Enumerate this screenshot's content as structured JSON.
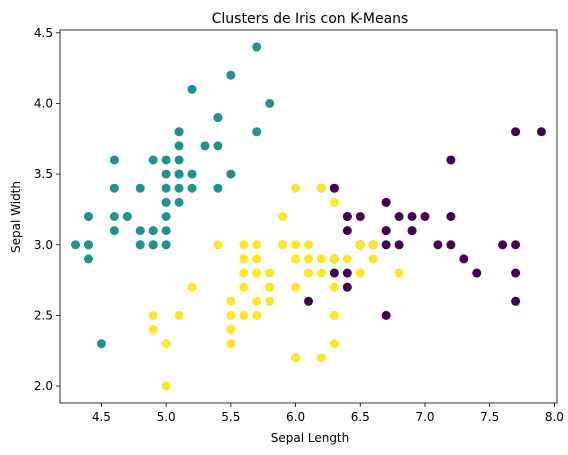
{
  "chart_data": {
    "type": "scatter",
    "title": "Clusters de Iris con K-Means",
    "xlabel": "Sepal Length",
    "ylabel": "Sepal Width",
    "xlim": [
      4.18,
      8.02
    ],
    "ylim": [
      1.88,
      4.52
    ],
    "xticks": [
      "4.5",
      "5.0",
      "5.5",
      "6.0",
      "6.5",
      "7.0",
      "7.5",
      "8.0"
    ],
    "yticks": [
      "2.0",
      "2.5",
      "3.0",
      "3.5",
      "4.0",
      "4.5"
    ],
    "grid": false,
    "legend": "none",
    "series": [
      {
        "color": "#21918c",
        "points": [
          [
            5.1,
            3.5
          ],
          [
            4.9,
            3.0
          ],
          [
            4.7,
            3.2
          ],
          [
            4.6,
            3.1
          ],
          [
            5.0,
            3.6
          ],
          [
            5.4,
            3.9
          ],
          [
            4.6,
            3.4
          ],
          [
            5.0,
            3.4
          ],
          [
            4.4,
            2.9
          ],
          [
            4.9,
            3.1
          ],
          [
            5.4,
            3.7
          ],
          [
            4.8,
            3.4
          ],
          [
            4.8,
            3.0
          ],
          [
            4.3,
            3.0
          ],
          [
            5.8,
            4.0
          ],
          [
            5.7,
            4.4
          ],
          [
            5.1,
            3.8
          ],
          [
            5.7,
            3.8
          ],
          [
            5.1,
            3.7
          ],
          [
            4.6,
            3.6
          ],
          [
            5.1,
            3.3
          ],
          [
            5.0,
            3.0
          ],
          [
            5.2,
            3.5
          ],
          [
            5.2,
            3.4
          ],
          [
            4.7,
            3.2
          ],
          [
            5.4,
            3.4
          ],
          [
            5.2,
            4.1
          ],
          [
            5.5,
            4.2
          ],
          [
            4.9,
            3.1
          ],
          [
            5.0,
            3.2
          ],
          [
            5.5,
            3.5
          ],
          [
            4.9,
            3.6
          ],
          [
            4.4,
            3.0
          ],
          [
            4.5,
            2.3
          ],
          [
            4.4,
            3.2
          ],
          [
            5.0,
            3.5
          ],
          [
            5.1,
            3.8
          ],
          [
            4.8,
            3.0
          ],
          [
            5.3,
            3.7
          ],
          [
            5.0,
            3.3
          ],
          [
            4.6,
            3.2
          ],
          [
            4.8,
            3.1
          ],
          [
            5.1,
            3.4
          ],
          [
            4.9,
            3.0
          ],
          [
            5.4,
            3.9
          ],
          [
            4.4,
            3.0
          ],
          [
            5.1,
            3.5
          ],
          [
            4.4,
            3.2
          ],
          [
            5.1,
            3.6
          ],
          [
            5.0,
            3.1
          ]
        ]
      },
      {
        "color": "#440154",
        "points": [
          [
            7.0,
            3.2
          ],
          [
            6.9,
            3.1
          ],
          [
            6.7,
            3.1
          ],
          [
            7.2,
            3.6
          ],
          [
            6.5,
            3.2
          ],
          [
            6.8,
            3.0
          ],
          [
            6.4,
            3.2
          ],
          [
            6.4,
            2.7
          ],
          [
            7.7,
            3.8
          ],
          [
            7.7,
            2.6
          ],
          [
            6.9,
            3.2
          ],
          [
            7.7,
            2.8
          ],
          [
            6.7,
            3.3
          ],
          [
            7.2,
            3.2
          ],
          [
            6.4,
            2.8
          ],
          [
            7.2,
            3.0
          ],
          [
            7.4,
            2.8
          ],
          [
            7.9,
            3.8
          ],
          [
            6.3,
            3.4
          ],
          [
            6.1,
            2.6
          ],
          [
            7.7,
            3.0
          ],
          [
            6.3,
            3.4
          ],
          [
            6.4,
            3.1
          ],
          [
            6.9,
            3.1
          ],
          [
            6.7,
            3.1
          ],
          [
            6.8,
            3.2
          ],
          [
            6.7,
            3.3
          ],
          [
            6.7,
            3.0
          ],
          [
            6.5,
            3.0
          ],
          [
            6.2,
            3.4
          ],
          [
            6.6,
            3.0
          ],
          [
            7.1,
            3.0
          ],
          [
            7.6,
            3.0
          ],
          [
            7.3,
            2.9
          ],
          [
            6.7,
            2.5
          ],
          [
            6.5,
            3.0
          ],
          [
            6.3,
            2.9
          ],
          [
            6.3,
            2.8
          ],
          [
            6.4,
            3.2
          ]
        ]
      },
      {
        "color": "#fde725",
        "points": [
          [
            5.5,
            2.3
          ],
          [
            6.5,
            2.8
          ],
          [
            5.7,
            2.8
          ],
          [
            6.3,
            3.3
          ],
          [
            4.9,
            2.4
          ],
          [
            6.6,
            2.9
          ],
          [
            5.2,
            2.7
          ],
          [
            5.0,
            2.0
          ],
          [
            5.9,
            3.0
          ],
          [
            6.0,
            2.2
          ],
          [
            6.1,
            2.9
          ],
          [
            5.6,
            2.9
          ],
          [
            5.6,
            3.0
          ],
          [
            5.8,
            2.7
          ],
          [
            6.2,
            2.2
          ],
          [
            5.6,
            2.5
          ],
          [
            5.9,
            3.2
          ],
          [
            6.1,
            2.8
          ],
          [
            6.3,
            2.5
          ],
          [
            6.1,
            2.8
          ],
          [
            6.6,
            3.0
          ],
          [
            6.0,
            2.9
          ],
          [
            5.7,
            2.6
          ],
          [
            5.5,
            2.4
          ],
          [
            5.5,
            2.4
          ],
          [
            5.8,
            2.7
          ],
          [
            6.0,
            2.7
          ],
          [
            5.4,
            3.0
          ],
          [
            6.0,
            3.4
          ],
          [
            6.3,
            2.3
          ],
          [
            5.6,
            3.0
          ],
          [
            5.5,
            2.5
          ],
          [
            5.5,
            2.6
          ],
          [
            6.1,
            3.0
          ],
          [
            5.8,
            2.6
          ],
          [
            5.0,
            2.3
          ],
          [
            5.6,
            2.7
          ],
          [
            5.7,
            3.0
          ],
          [
            5.7,
            2.9
          ],
          [
            6.2,
            2.9
          ],
          [
            5.1,
            2.5
          ],
          [
            5.7,
            2.8
          ],
          [
            5.8,
            2.7
          ],
          [
            6.3,
            2.9
          ],
          [
            4.9,
            2.5
          ],
          [
            6.8,
            2.8
          ],
          [
            5.7,
            2.5
          ],
          [
            5.8,
            2.8
          ],
          [
            6.0,
            2.2
          ],
          [
            5.6,
            2.8
          ],
          [
            6.2,
            2.8
          ],
          [
            6.1,
            3.0
          ],
          [
            6.0,
            3.0
          ],
          [
            5.8,
            2.7
          ],
          [
            6.3,
            2.5
          ],
          [
            6.5,
            3.0
          ],
          [
            5.9,
            3.0
          ],
          [
            6.2,
            3.4
          ],
          [
            5.9,
            3.0
          ],
          [
            6.3,
            2.7
          ],
          [
            6.4,
            2.9
          ],
          [
            6.0,
            2.9
          ]
        ]
      }
    ]
  }
}
